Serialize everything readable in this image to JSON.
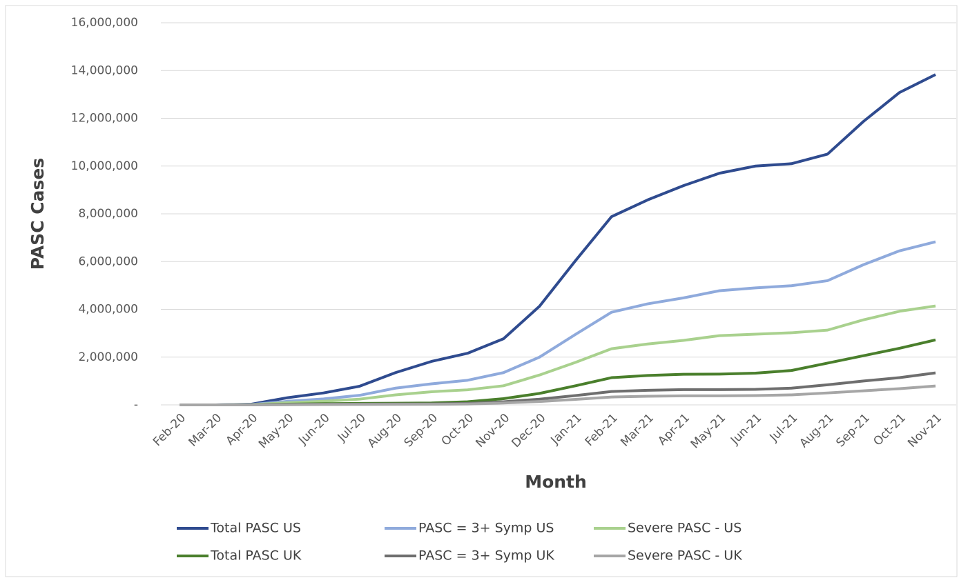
{
  "chart_data": {
    "type": "line",
    "x_label": "Month",
    "y_label": "PASC Cases",
    "categories": [
      "Feb-20",
      "Mar-20",
      "Apr-20",
      "May-20",
      "Jun-20",
      "Jul-20",
      "Aug-20",
      "Sep-20",
      "Oct-20",
      "Nov-20",
      "Dec-20",
      "Jan-21",
      "Feb-21",
      "Mar-21",
      "Apr-21",
      "May-21",
      "Jun-21",
      "Jul-21",
      "Aug-21",
      "Sep-21",
      "Oct-21",
      "Nov-21"
    ],
    "series": [
      {
        "name": "Total PASC US",
        "color": "#2f4b8f",
        "values": [
          0,
          0,
          30000,
          300000,
          500000,
          780000,
          1350000,
          1820000,
          2160000,
          2770000,
          4130000,
          6040000,
          7880000,
          8580000,
          9180000,
          9700000,
          10000000,
          10100000,
          10500000,
          11870000,
          13080000,
          13830000
        ]
      },
      {
        "name": "PASC = 3+ Symp US",
        "color": "#8faadc",
        "values": [
          0,
          0,
          15000,
          150000,
          250000,
          400000,
          700000,
          880000,
          1030000,
          1350000,
          2000000,
          2950000,
          3880000,
          4230000,
          4480000,
          4780000,
          4900000,
          4990000,
          5200000,
          5870000,
          6450000,
          6830000
        ]
      },
      {
        "name": "Severe PASC - US",
        "color": "#a9d18e",
        "values": [
          0,
          0,
          10000,
          90000,
          150000,
          240000,
          420000,
          550000,
          630000,
          800000,
          1250000,
          1780000,
          2350000,
          2550000,
          2700000,
          2900000,
          2960000,
          3020000,
          3130000,
          3560000,
          3920000,
          4140000
        ]
      },
      {
        "name": "Total PASC UK",
        "color": "#4a7f2c",
        "values": [
          0,
          0,
          5000,
          30000,
          50000,
          60000,
          70000,
          80000,
          130000,
          260000,
          480000,
          800000,
          1140000,
          1230000,
          1280000,
          1290000,
          1330000,
          1440000,
          1750000,
          2060000,
          2370000,
          2720000
        ]
      },
      {
        "name": "PASC = 3+ Symp UK",
        "color": "#6e6e6e",
        "values": [
          0,
          0,
          2000,
          15000,
          25000,
          30000,
          35000,
          40000,
          60000,
          130000,
          240000,
          390000,
          560000,
          610000,
          640000,
          640000,
          650000,
          700000,
          840000,
          1000000,
          1140000,
          1340000
        ]
      },
      {
        "name": "Severe PASC - UK",
        "color": "#a6a6a6",
        "values": [
          0,
          0,
          1000,
          9000,
          15000,
          18000,
          20000,
          24000,
          36000,
          80000,
          140000,
          230000,
          330000,
          360000,
          380000,
          380000,
          390000,
          420000,
          500000,
          590000,
          680000,
          790000
        ]
      }
    ],
    "ylim": [
      0,
      16000000
    ],
    "yticks": [
      {
        "value": 0,
        "label": "-"
      },
      {
        "value": 2000000,
        "label": "2,000,000"
      },
      {
        "value": 4000000,
        "label": "4,000,000"
      },
      {
        "value": 6000000,
        "label": "6,000,000"
      },
      {
        "value": 8000000,
        "label": "8,000,000"
      },
      {
        "value": 10000000,
        "label": "10,000,000"
      },
      {
        "value": 12000000,
        "label": "12,000,000"
      },
      {
        "value": 14000000,
        "label": "14,000,000"
      },
      {
        "value": 16000000,
        "label": "16,000,000"
      }
    ],
    "grid": true
  }
}
